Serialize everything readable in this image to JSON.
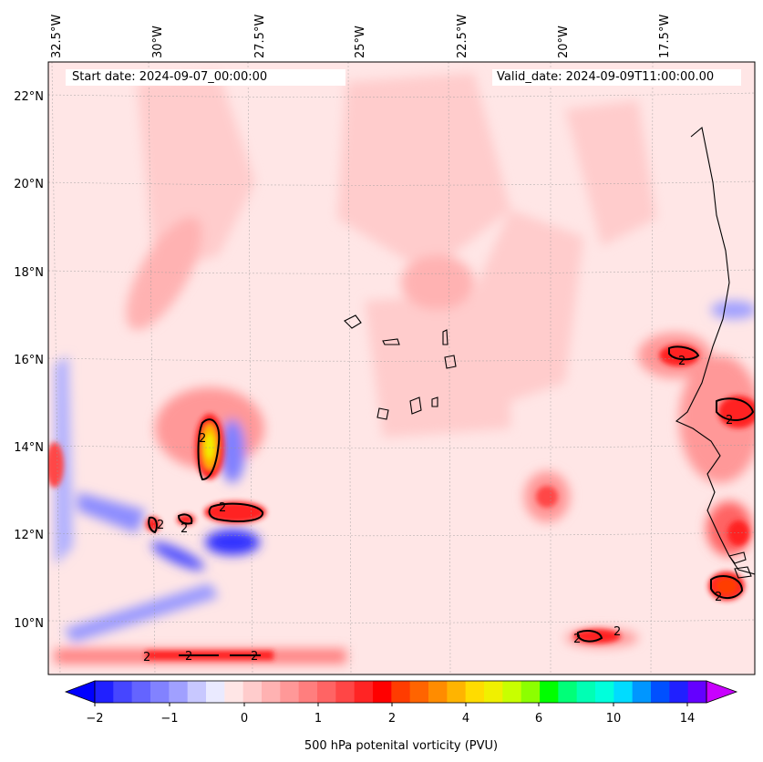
{
  "header": {
    "start_date": "Start date: 2024-09-07_00:00:00",
    "valid_date": "Valid_date: 2024-09-09T11:00:00.00"
  },
  "axes": {
    "lon_labels": [
      "32.5°W",
      "30°W",
      "27.5°W",
      "25°W",
      "22.5°W",
      "20°W",
      "17.5°W"
    ],
    "lat_labels": [
      "22°N",
      "20°N",
      "18°N",
      "16°N",
      "14°N",
      "12°N",
      "10°N"
    ]
  },
  "contour_label": "2",
  "colorbar": {
    "label": "500 hPa potenital vorticity (PVU)",
    "ticks": [
      "−2",
      "−1",
      "0",
      "1",
      "2",
      "4",
      "6",
      "10",
      "14"
    ],
    "colors": [
      "#2020ff",
      "#4646ff",
      "#6464ff",
      "#8282ff",
      "#a0a0ff",
      "#c8c8ff",
      "#eaeaff",
      "#ffe6e6",
      "#ffcccc",
      "#ffb2b2",
      "#ff9898",
      "#ff7e7e",
      "#ff6464",
      "#ff4646",
      "#ff2424",
      "#ff0000",
      "#ff3c00",
      "#ff6400",
      "#ff8c00",
      "#ffb400",
      "#ffdc00",
      "#f0f000",
      "#c8ff00",
      "#8cff00",
      "#00ff00",
      "#00ff78",
      "#00ffb4",
      "#00ffdc",
      "#00dcff",
      "#0096ff",
      "#0050ff",
      "#2020ff",
      "#6400ff"
    ],
    "under_color": "#0000ff",
    "over_color": "#c800ff"
  }
}
